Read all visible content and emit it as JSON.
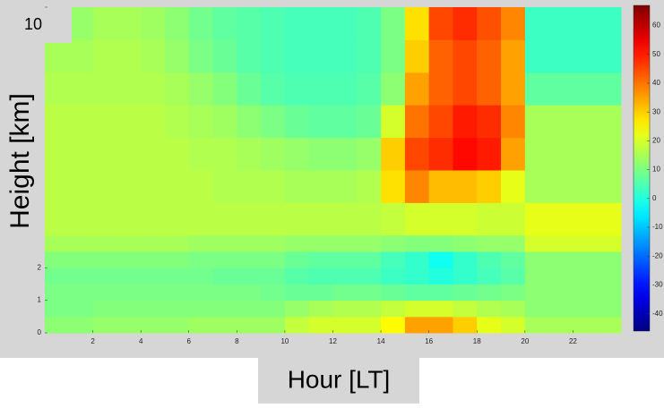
{
  "chart_data": {
    "type": "heatmap",
    "xlabel": "Hour [LT]",
    "ylabel": "Height [km]",
    "xlim": [
      0,
      24
    ],
    "xticks": [
      2,
      4,
      6,
      8,
      10,
      12,
      14,
      16,
      18,
      20,
      22
    ],
    "ylim": [
      0,
      10
    ],
    "yticks": [
      0,
      1,
      2,
      10
    ],
    "colormap": "jet",
    "clim": [
      -46,
      67
    ],
    "cticks": [
      -40,
      -30,
      -20,
      -10,
      0,
      10,
      20,
      30,
      40,
      50,
      60
    ],
    "xbins": [
      0,
      1,
      2,
      3,
      4,
      5,
      6,
      7,
      8,
      9,
      10,
      11,
      12,
      13,
      14,
      15,
      16,
      17,
      18,
      19,
      20,
      21,
      22,
      23,
      24
    ],
    "ybins": [
      0,
      0.5,
      1,
      1.5,
      2,
      2.5,
      3,
      4,
      5,
      6,
      7,
      8,
      9,
      10
    ],
    "z": [
      [
        12,
        12,
        13,
        13,
        13,
        13,
        14,
        14,
        14,
        14,
        18,
        20,
        20,
        20,
        25,
        35,
        35,
        30,
        22,
        20,
        15,
        15,
        15,
        15
      ],
      [
        10,
        10,
        11,
        11,
        11,
        11,
        11,
        11,
        11,
        11,
        13,
        15,
        16,
        16,
        18,
        20,
        20,
        18,
        16,
        15,
        12,
        12,
        12,
        12
      ],
      [
        10,
        10,
        10,
        10,
        10,
        10,
        10,
        10,
        10,
        9,
        8,
        8,
        9,
        9,
        8,
        7,
        7,
        8,
        9,
        10,
        12,
        12,
        12,
        12
      ],
      [
        9,
        9,
        9,
        9,
        9,
        9,
        9,
        8,
        8,
        8,
        6,
        5,
        5,
        5,
        3,
        2,
        0,
        2,
        4,
        6,
        12,
        12,
        12,
        12
      ],
      [
        11,
        11,
        11,
        11,
        11,
        11,
        10,
        10,
        10,
        10,
        8,
        7,
        7,
        7,
        4,
        2,
        -2,
        2,
        5,
        7,
        12,
        12,
        12,
        12
      ],
      [
        15,
        15,
        15,
        15,
        15,
        15,
        14,
        14,
        14,
        14,
        13,
        13,
        13,
        13,
        12,
        11,
        11,
        12,
        13,
        13,
        20,
        20,
        20,
        20
      ],
      [
        17,
        17,
        17,
        17,
        17,
        17,
        17,
        17,
        17,
        17,
        17,
        17,
        17,
        17,
        18,
        20,
        20,
        20,
        19,
        19,
        22,
        22,
        22,
        22
      ],
      [
        17,
        17,
        17,
        17,
        17,
        17,
        17,
        16,
        16,
        16,
        15,
        15,
        15,
        16,
        28,
        38,
        32,
        32,
        30,
        22,
        15,
        15,
        15,
        15
      ],
      [
        17,
        17,
        17,
        17,
        17,
        17,
        16,
        16,
        15,
        14,
        13,
        12,
        12,
        13,
        30,
        45,
        48,
        52,
        50,
        35,
        15,
        15,
        15,
        15
      ],
      [
        17,
        17,
        17,
        17,
        17,
        16,
        15,
        14,
        12,
        10,
        8,
        7,
        7,
        8,
        20,
        40,
        45,
        50,
        48,
        38,
        15,
        15,
        15,
        15
      ],
      [
        16,
        16,
        16,
        16,
        16,
        15,
        13,
        11,
        8,
        6,
        5,
        5,
        5,
        6,
        12,
        35,
        42,
        45,
        42,
        35,
        7,
        7,
        7,
        7
      ],
      [
        15,
        15,
        16,
        16,
        15,
        13,
        10,
        8,
        6,
        5,
        4,
        4,
        4,
        5,
        10,
        30,
        42,
        45,
        42,
        35,
        3,
        3,
        3,
        3
      ],
      [
        12,
        13,
        15,
        15,
        14,
        12,
        9,
        7,
        6,
        5,
        4,
        4,
        4,
        5,
        10,
        28,
        45,
        48,
        44,
        38,
        3,
        3,
        3,
        3
      ]
    ]
  }
}
